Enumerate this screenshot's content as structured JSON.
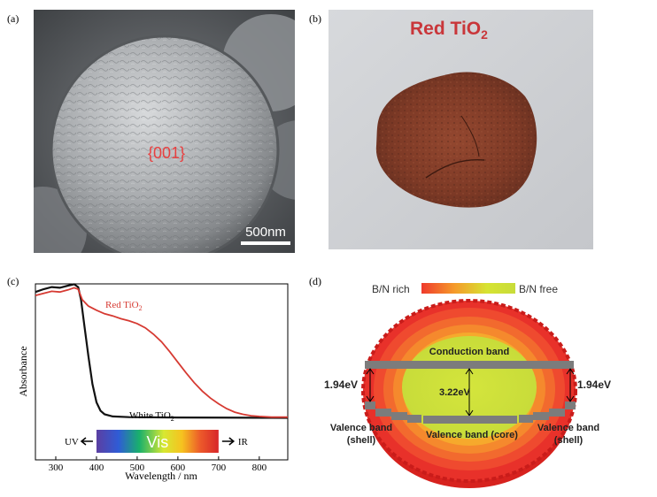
{
  "panel_labels": {
    "a": "(a)",
    "b": "(b)",
    "c": "(c)",
    "d": "(d)"
  },
  "panel_a": {
    "facet_label": "{001}",
    "scale_bar_label": "500nm"
  },
  "panel_b": {
    "title_main": "Red TiO",
    "title_sub": "2"
  },
  "chart_data": {
    "type": "line",
    "xlabel": "Wavelength / nm",
    "ylabel": "Absorbance",
    "xlim": [
      250,
      870
    ],
    "ylim": [
      0,
      1
    ],
    "x_ticks": [
      300,
      400,
      500,
      600,
      700,
      800
    ],
    "grid": false,
    "series": [
      {
        "name": "Red TiO2",
        "label_main": "Red TiO",
        "label_sub": "2",
        "color": "#d63a32",
        "points": [
          [
            250,
            0.93
          ],
          [
            270,
            0.945
          ],
          [
            290,
            0.96
          ],
          [
            310,
            0.955
          ],
          [
            330,
            0.97
          ],
          [
            345,
            0.985
          ],
          [
            355,
            0.975
          ],
          [
            365,
            0.9
          ],
          [
            380,
            0.855
          ],
          [
            400,
            0.825
          ],
          [
            420,
            0.8
          ],
          [
            440,
            0.785
          ],
          [
            460,
            0.765
          ],
          [
            480,
            0.75
          ],
          [
            500,
            0.73
          ],
          [
            520,
            0.7
          ],
          [
            540,
            0.655
          ],
          [
            560,
            0.6
          ],
          [
            580,
            0.53
          ],
          [
            600,
            0.455
          ],
          [
            620,
            0.38
          ],
          [
            640,
            0.31
          ],
          [
            660,
            0.25
          ],
          [
            680,
            0.2
          ],
          [
            700,
            0.16
          ],
          [
            720,
            0.125
          ],
          [
            740,
            0.1
          ],
          [
            760,
            0.085
          ],
          [
            780,
            0.075
          ],
          [
            800,
            0.07
          ],
          [
            830,
            0.065
          ],
          [
            870,
            0.065
          ]
        ]
      },
      {
        "name": "White TiO2",
        "label_main": "White TiO",
        "label_sub": "2",
        "color": "#111111",
        "points": [
          [
            250,
            0.955
          ],
          [
            270,
            0.975
          ],
          [
            290,
            0.99
          ],
          [
            310,
            0.985
          ],
          [
            330,
            1.0
          ],
          [
            345,
            1.01
          ],
          [
            355,
            0.99
          ],
          [
            362,
            0.9
          ],
          [
            370,
            0.72
          ],
          [
            380,
            0.5
          ],
          [
            390,
            0.3
          ],
          [
            400,
            0.17
          ],
          [
            410,
            0.11
          ],
          [
            420,
            0.085
          ],
          [
            440,
            0.07
          ],
          [
            480,
            0.065
          ],
          [
            600,
            0.062
          ],
          [
            870,
            0.06
          ]
        ]
      }
    ],
    "spectrum_bar": {
      "label_left": "UV",
      "label_center": "Vis",
      "label_right": "IR",
      "x_start": 400,
      "x_end": 700
    }
  },
  "panel_d": {
    "gradient_left_label": "B/N rich",
    "gradient_right_label": "B/N free",
    "conduction_band": "Conduction band",
    "core_gap": "3.22eV",
    "shell_gap_left": "1.94eV",
    "shell_gap_right": "1.94eV",
    "vb_left_line1": "Valence band",
    "vb_left_line2": "(shell)",
    "vb_core": "Valence band (core)",
    "vb_right_line1": "Valence band",
    "vb_right_line2": "(shell)"
  }
}
